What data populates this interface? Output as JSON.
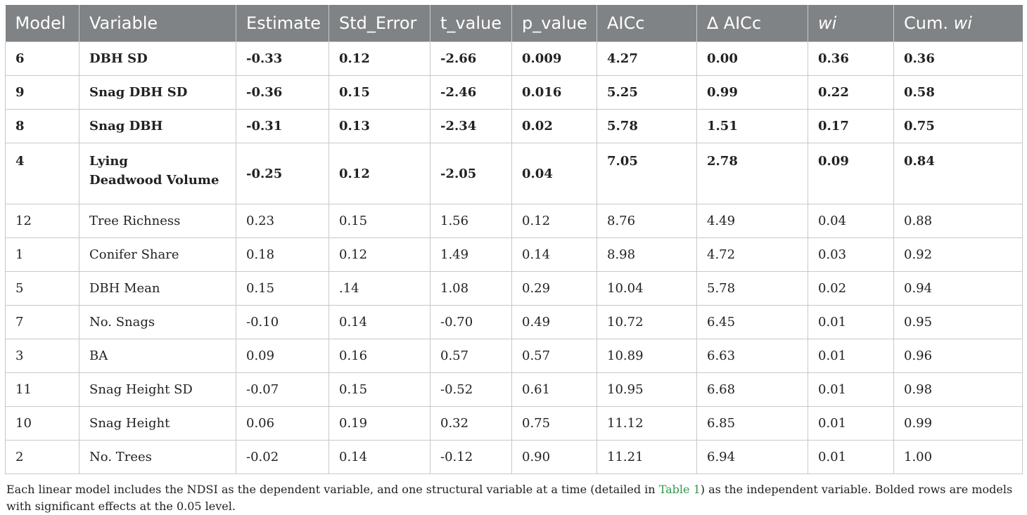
{
  "table": {
    "headers": [
      "Model",
      "Variable",
      "Estimate",
      "Std_Error",
      "t_value",
      "p_value",
      "AICc",
      "∆ AICc",
      "wi",
      "Cum. wi"
    ],
    "header_cum_prefix": "Cum. ",
    "header_cum_ital": "wi",
    "rows": [
      {
        "bold": true,
        "cells": [
          "6",
          "DBH SD",
          "-0.33",
          "0.12",
          "-2.66",
          "0.009",
          "4.27",
          "0.00",
          "0.36",
          "0.36"
        ]
      },
      {
        "bold": true,
        "cells": [
          "9",
          "Snag DBH SD",
          "-0.36",
          "0.15",
          "-2.46",
          "0.016",
          "5.25",
          "0.99",
          "0.22",
          "0.58"
        ]
      },
      {
        "bold": true,
        "cells": [
          "8",
          "Snag DBH",
          "-0.31",
          "0.13",
          "-2.34",
          "0.02",
          "5.78",
          "1.51",
          "0.17",
          "0.75"
        ]
      },
      {
        "bold": true,
        "cells": [
          "4",
          "Lying",
          "-0.25",
          "0.12",
          "-2.05",
          "0.04",
          "7.05",
          "2.78",
          "0.09",
          "0.84"
        ],
        "variable_line2": "Deadwood Volume"
      },
      {
        "bold": false,
        "cells": [
          "12",
          "Tree Richness",
          "0.23",
          "0.15",
          "1.56",
          "0.12",
          "8.76",
          "4.49",
          "0.04",
          "0.88"
        ]
      },
      {
        "bold": false,
        "cells": [
          "1",
          "Conifer Share",
          "0.18",
          "0.12",
          "1.49",
          "0.14",
          "8.98",
          "4.72",
          "0.03",
          "0.92"
        ]
      },
      {
        "bold": false,
        "cells": [
          "5",
          "DBH Mean",
          "0.15",
          ".14",
          "1.08",
          "0.29",
          "10.04",
          "5.78",
          "0.02",
          "0.94"
        ]
      },
      {
        "bold": false,
        "cells": [
          "7",
          "No. Snags",
          "-0.10",
          "0.14",
          "-0.70",
          "0.49",
          "10.72",
          "6.45",
          "0.01",
          "0.95"
        ]
      },
      {
        "bold": false,
        "cells": [
          "3",
          "BA",
          "0.09",
          "0.16",
          "0.57",
          "0.57",
          "10.89",
          "6.63",
          "0.01",
          "0.96"
        ]
      },
      {
        "bold": false,
        "cells": [
          "11",
          "Snag Height SD",
          "-0.07",
          "0.15",
          "-0.52",
          "0.61",
          "10.95",
          "6.68",
          "0.01",
          "0.98"
        ]
      },
      {
        "bold": false,
        "cells": [
          "10",
          "Snag Height",
          "0.06",
          "0.19",
          "0.32",
          "0.75",
          "11.12",
          "6.85",
          "0.01",
          "0.99"
        ]
      },
      {
        "bold": false,
        "cells": [
          "2",
          "No. Trees",
          "-0.02",
          "0.14",
          "-0.12",
          "0.90",
          "11.21",
          "6.94",
          "0.01",
          "1.00"
        ]
      }
    ]
  },
  "footnote": {
    "before_link": "Each linear model includes the NDSI as the dependent variable, and one structural variable at a time (detailed in ",
    "link": "Table 1",
    "after_link": ") as the independent variable. Bolded rows are models with significant effects at the 0.05 level."
  }
}
